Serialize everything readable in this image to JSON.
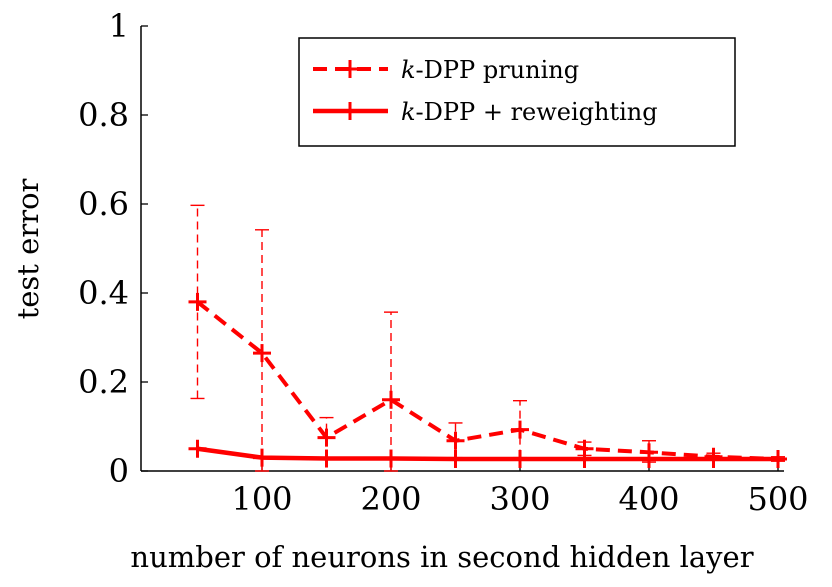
{
  "chart_data": {
    "type": "line",
    "xlabel": "number of neurons in second hidden layer",
    "ylabel": "test error",
    "xlim": [
      0,
      500
    ],
    "ylim": [
      0,
      1
    ],
    "xticks": [
      100,
      200,
      300,
      400,
      500
    ],
    "xtick_labels": [
      "100",
      "200",
      "300",
      "400",
      "500"
    ],
    "yticks": [
      0,
      0.2,
      0.4,
      0.6,
      0.8,
      1
    ],
    "ytick_labels": [
      "0",
      "0.2",
      "0.4",
      "0.6",
      "0.8",
      "1"
    ],
    "grid": false,
    "legend_position": "top-right",
    "series": [
      {
        "name_italic": "k",
        "name_rest": "-DPP pruning",
        "line_style": "dashed",
        "marker": "+",
        "color": "#ff0000",
        "x": [
          50,
          100,
          150,
          200,
          250,
          300,
          350,
          400,
          450,
          500
        ],
        "y": [
          0.38,
          0.265,
          0.075,
          0.16,
          0.068,
          0.093,
          0.05,
          0.042,
          0.032,
          0.027
        ],
        "y_low": [
          0.163,
          0.0,
          0.03,
          0.0,
          0.03,
          0.03,
          0.035,
          0.02,
          0.025,
          0.022
        ],
        "y_high": [
          0.597,
          0.542,
          0.12,
          0.357,
          0.108,
          0.158,
          0.065,
          0.068,
          0.04,
          0.032
        ]
      },
      {
        "name_italic": "k",
        "name_rest": "-DPP + reweighting",
        "line_style": "solid",
        "marker": "+",
        "color": "#ff0000",
        "x": [
          50,
          100,
          150,
          200,
          250,
          300,
          350,
          400,
          450,
          500
        ],
        "y": [
          0.05,
          0.03,
          0.028,
          0.028,
          0.027,
          0.027,
          0.027,
          0.027,
          0.027,
          0.027
        ]
      }
    ]
  }
}
